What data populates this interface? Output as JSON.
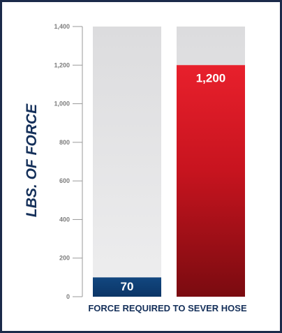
{
  "chart_data": {
    "type": "bar",
    "title": "",
    "xlabel": "FORCE REQUIRED TO SEVER HOSE",
    "ylabel": "LBS. OF FORCE",
    "ylim": [
      0,
      1400
    ],
    "yticks": [
      "0",
      "200",
      "400",
      "600",
      "800",
      "1,000",
      "1,200",
      "1,400"
    ],
    "grid": false,
    "legend": "none",
    "values": [
      70,
      1200
    ],
    "value_labels": [
      "70",
      "1,200"
    ],
    "colors": {
      "bar_1": "#0f3f7a",
      "bar_2": "#e21f2d",
      "bar_2_dark": "#7a0b10",
      "bar_background": "#e0e0e2",
      "title": "#15305a",
      "border": "#1b2a4a"
    }
  }
}
